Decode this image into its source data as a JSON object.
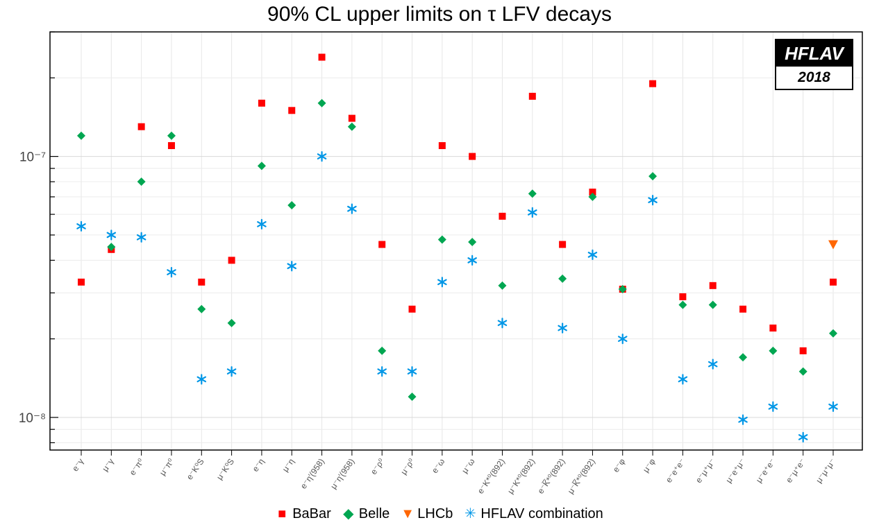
{
  "chart_data": {
    "type": "scatter",
    "title": "90% CL upper limits on τ LFV decays",
    "xlabel": "",
    "ylabel": "",
    "y_scale": "log",
    "ylim": [
      7.5e-09,
      3e-07
    ],
    "y_tick_labels": [
      {
        "value": 1e-07,
        "label": "10⁻⁷"
      },
      {
        "value": 1e-08,
        "label": "10⁻⁸"
      }
    ],
    "grid": true,
    "legend_position": "bottom",
    "categories": [
      "e⁻γ",
      "μ⁻γ",
      "e⁻π⁰",
      "μ⁻π⁰",
      "e⁻K⁰S",
      "μ⁻K⁰S",
      "e⁻η",
      "μ⁻η",
      "e⁻η′(958)",
      "μ⁻η′(958)",
      "e⁻ρ⁰",
      "μ⁻ρ⁰",
      "e⁻ω",
      "μ⁻ω",
      "e⁻K*⁰(892)",
      "μ⁻K*⁰(892)",
      "e⁻K̅*⁰(892)",
      "μ⁻K̅*⁰(892)",
      "e⁻φ",
      "μ⁻φ",
      "e⁻e⁺e⁻",
      "e⁻μ⁺μ⁻",
      "μ⁻e⁺μ⁻",
      "μ⁻e⁺e⁻",
      "e⁻μ⁺e⁻",
      "μ⁻μ⁺μ⁻"
    ],
    "series": [
      {
        "name": "BaBar",
        "color": "#ff0000",
        "marker": "square",
        "values": [
          3.3e-08,
          4.4e-08,
          1.3e-07,
          1.1e-07,
          3.3e-08,
          4e-08,
          1.6e-07,
          1.5e-07,
          2.4e-07,
          1.4e-07,
          4.6e-08,
          2.6e-08,
          1.1e-07,
          1e-07,
          5.9e-08,
          1.7e-07,
          4.6e-08,
          7.3e-08,
          3.1e-08,
          1.9e-07,
          2.9e-08,
          3.2e-08,
          2.6e-08,
          2.2e-08,
          1.8e-08,
          3.3e-08
        ]
      },
      {
        "name": "Belle",
        "color": "#00a651",
        "marker": "diamond",
        "values": [
          1.2e-07,
          4.5e-08,
          8e-08,
          1.2e-07,
          2.6e-08,
          2.3e-08,
          9.2e-08,
          6.5e-08,
          1.6e-07,
          1.3e-07,
          1.8e-08,
          1.2e-08,
          4.8e-08,
          4.7e-08,
          3.2e-08,
          7.2e-08,
          3.4e-08,
          7e-08,
          3.1e-08,
          8.4e-08,
          2.7e-08,
          2.7e-08,
          1.7e-08,
          1.8e-08,
          1.5e-08,
          2.1e-08
        ]
      },
      {
        "name": "LHCb",
        "color": "#ff6600",
        "marker": "triangle-down",
        "values": [
          null,
          null,
          null,
          null,
          null,
          null,
          null,
          null,
          null,
          null,
          null,
          null,
          null,
          null,
          null,
          null,
          null,
          null,
          null,
          null,
          null,
          null,
          null,
          null,
          null,
          4.6e-08
        ]
      },
      {
        "name": "HFLAV combination",
        "color": "#0096e6",
        "marker": "asterisk",
        "values": [
          5.4e-08,
          5e-08,
          4.9e-08,
          3.6e-08,
          1.4e-08,
          1.5e-08,
          5.5e-08,
          3.8e-08,
          1e-07,
          6.3e-08,
          1.5e-08,
          1.5e-08,
          3.3e-08,
          4e-08,
          2.3e-08,
          6.1e-08,
          2.2e-08,
          4.2e-08,
          2e-08,
          6.8e-08,
          1.4e-08,
          1.6e-08,
          9.8e-09,
          1.1e-08,
          8.4e-09,
          1.1e-08
        ]
      }
    ]
  },
  "badge": {
    "title": "HFLAV",
    "year": "2018"
  },
  "legend": [
    {
      "label": "BaBar",
      "symbol": "■",
      "color": "#ff0000"
    },
    {
      "label": "Belle",
      "symbol": "◆",
      "color": "#00a651"
    },
    {
      "label": "LHCb",
      "symbol": "▼",
      "color": "#ff6600"
    },
    {
      "label": "HFLAV combination",
      "symbol": "✳",
      "color": "#0096e6"
    }
  ]
}
